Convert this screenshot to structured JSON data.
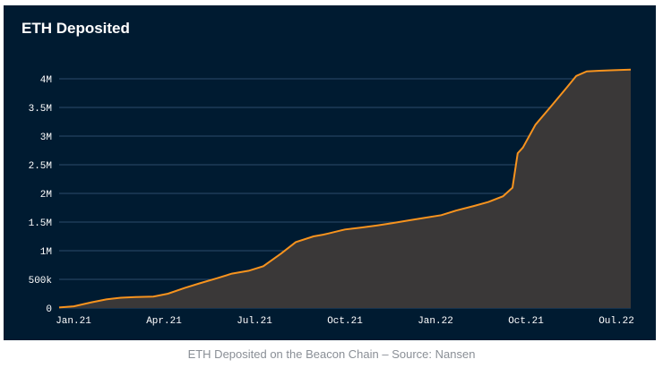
{
  "caption": "ETH Deposited on the Beacon Chain – Source: Nansen",
  "colors": {
    "background": "#001b31",
    "line": "#f7931e",
    "area": "#3a3838",
    "grid": "#2c4b6a"
  },
  "chart_data": {
    "type": "area",
    "title": "ETH Deposited",
    "xlabel": "",
    "ylabel": "",
    "x_ticks": [
      "Jan.21",
      "Apr.21",
      "Jul.21",
      "Oct.21",
      "Jan.22",
      "Oct.21",
      "Oul.22"
    ],
    "y_ticks": [
      "0",
      "500k",
      "1M",
      "1.5M",
      "2M",
      "2.5M",
      "3M",
      "3.5M",
      "4M"
    ],
    "ylim": [
      0,
      4200000
    ],
    "grid": true,
    "series": [
      {
        "x": [
          "2021-01-01",
          "2021-01-15",
          "2021-02-01",
          "2021-02-15",
          "2021-03-01",
          "2021-03-15",
          "2021-04-01",
          "2021-04-15",
          "2021-05-01",
          "2021-05-15",
          "2021-06-01",
          "2021-06-15",
          "2021-07-01",
          "2021-07-15",
          "2021-08-01",
          "2021-08-15",
          "2021-09-01",
          "2021-09-10",
          "2021-09-15",
          "2021-10-01",
          "2021-10-15",
          "2021-11-01",
          "2021-11-15",
          "2021-12-01",
          "2021-12-15",
          "2022-01-01",
          "2022-01-15",
          "2022-02-01",
          "2022-02-15",
          "2022-03-01",
          "2022-03-10",
          "2022-03-15",
          "2022-03-20",
          "2022-04-01",
          "2022-04-15",
          "2022-05-01",
          "2022-05-10",
          "2022-05-20",
          "2022-06-01",
          "2022-06-15",
          "2022-07-01"
        ],
        "values": [
          10000,
          30000,
          100000,
          150000,
          180000,
          190000,
          200000,
          250000,
          350000,
          430000,
          520000,
          600000,
          650000,
          730000,
          950000,
          1150000,
          1250000,
          1280000,
          1300000,
          1370000,
          1400000,
          1440000,
          1480000,
          1530000,
          1570000,
          1620000,
          1700000,
          1780000,
          1850000,
          1950000,
          2100000,
          2700000,
          2800000,
          3200000,
          3500000,
          3850000,
          4050000,
          4130000,
          4140000,
          4150000,
          4160000
        ]
      }
    ]
  }
}
